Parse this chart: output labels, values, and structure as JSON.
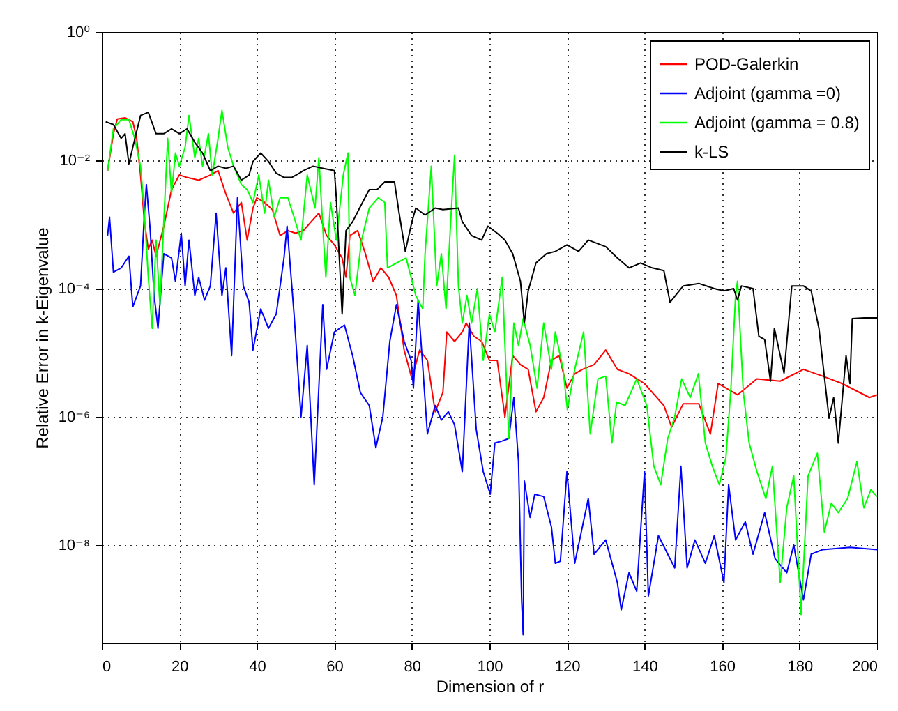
{
  "chart_data": {
    "type": "line",
    "xlabel": "Dimension of r",
    "ylabel": "Relative Error in k-Eigenvalue",
    "xlim": [
      0,
      200
    ],
    "xticks": [
      0,
      20,
      40,
      60,
      80,
      100,
      120,
      140,
      160,
      180,
      200
    ],
    "ylim": [
      3e-10,
      1
    ],
    "yticks": [
      {
        "value": 1e-08,
        "label": "10⁻⁸"
      },
      {
        "value": 1e-06,
        "label": "10⁻⁶"
      },
      {
        "value": 0.0001,
        "label": "10⁻⁴"
      },
      {
        "value": 0.01,
        "label": "10⁻²"
      },
      {
        "value": 1,
        "label": "10⁰"
      }
    ],
    "log": "y",
    "grid": true,
    "legend": "top right",
    "marker": "none",
    "line_style": "solid",
    "series": [
      {
        "name": "POD-Galerkin",
        "color": "#ff0000",
        "x": [
          1.5,
          3,
          4,
          6,
          8,
          9,
          10,
          11,
          12,
          13,
          14,
          16,
          18,
          20,
          22,
          25,
          28,
          30,
          32,
          34,
          36,
          37.5,
          39,
          40,
          42,
          44,
          46,
          48,
          50,
          52,
          54,
          56,
          58,
          60,
          62,
          63,
          64,
          66,
          68,
          70,
          72,
          74,
          76,
          77,
          78,
          80,
          82,
          84,
          86,
          88,
          89,
          91,
          93,
          94,
          96,
          98,
          100,
          102,
          104,
          106,
          108,
          110,
          112,
          114,
          116,
          118,
          120,
          122,
          124,
          127,
          130,
          133,
          136,
          140,
          142,
          145,
          147,
          150,
          154,
          157,
          159,
          164,
          169,
          175,
          181,
          186,
          191,
          198,
          200
        ],
        "values": [
          0.0069,
          0.026,
          0.044,
          0.046,
          0.04,
          0.022,
          0.0059,
          0.0011,
          0.00041,
          0.00057,
          0.00032,
          0.00094,
          0.0035,
          0.0059,
          0.0054,
          0.0049,
          0.0059,
          0.0069,
          0.003,
          0.0015,
          0.0022,
          0.00057,
          0.0018,
          0.0026,
          0.0022,
          0.0017,
          0.00067,
          0.0008,
          0.00073,
          0.0008,
          0.0011,
          0.0015,
          0.00067,
          0.00048,
          0.0003,
          0.00015,
          0.00067,
          0.0008,
          0.00035,
          0.00013,
          0.00021,
          0.00015,
          7.8e-05,
          2.9e-05,
          1.1e-05,
          3.9e-06,
          1.1e-05,
          7.6e-06,
          1.2e-06,
          2.4e-06,
          2.1e-05,
          1.5e-05,
          2.1e-05,
          2.9e-05,
          1.8e-05,
          1.5e-05,
          7.6e-06,
          7.6e-06,
          1e-06,
          9e-06,
          6.5e-06,
          5.5e-06,
          1.2e-06,
          2e-06,
          7.6e-06,
          9e-06,
          2.8e-06,
          4.7e-06,
          5.5e-06,
          6.5e-06,
          1.1e-05,
          5.5e-06,
          4.7e-06,
          3.3e-06,
          2.4e-06,
          1.5e-06,
          6.9e-07,
          1.6e-06,
          1.6e-06,
          5.4e-07,
          3.3e-06,
          2.2e-06,
          3.9e-06,
          3.6e-06,
          5.5e-06,
          4.3e-06,
          3.3e-06,
          2e-06,
          2.2e-06
        ]
      },
      {
        "name": "Adjoint (gamma =0)",
        "color": "#0000ff",
        "x": [
          1.5,
          2,
          3,
          5,
          7,
          8,
          10,
          11,
          11.5,
          12.5,
          13.5,
          14.5,
          16,
          18,
          19,
          20.5,
          21.5,
          22.5,
          24,
          25,
          26.5,
          28,
          29.5,
          31,
          32,
          33.5,
          35,
          36.5,
          38,
          39,
          41,
          43,
          45,
          47,
          47.8,
          49.6,
          51.4,
          53,
          54.8,
          57,
          58,
          60,
          62.6,
          64.7,
          66.7,
          69,
          70.7,
          72.5,
          74.3,
          76,
          78,
          79.8,
          80.4,
          81.6,
          84,
          86,
          87.6,
          89.4,
          91,
          93,
          94.8,
          96.6,
          98.4,
          100.2,
          101.4,
          103.3,
          105,
          106.3,
          107.5,
          108.3,
          108.7,
          109,
          110.5,
          111.7,
          114,
          116,
          117,
          118.3,
          120,
          122,
          123.7,
          125.5,
          127,
          130,
          133,
          134,
          136,
          138,
          140,
          141,
          143.6,
          146,
          147.8,
          149.4,
          151,
          153,
          155.7,
          158,
          160.5,
          161.7,
          163.5,
          166,
          168,
          171,
          173.7,
          176.7,
          178.5,
          181,
          183,
          186,
          193,
          200
        ],
        "values": [
          0.00067,
          0.0013,
          0.00018,
          0.00021,
          0.00032,
          5.2e-05,
          0.00011,
          0.0015,
          0.0042,
          0.0008,
          7.8e-05,
          2.4e-05,
          0.00035,
          0.0003,
          0.00013,
          0.00073,
          0.00011,
          0.00057,
          7.8e-05,
          0.00015,
          6.6e-05,
          0.00011,
          0.0015,
          7.8e-05,
          0.00021,
          9e-06,
          0.0026,
          0.00011,
          6.1e-05,
          1.1e-05,
          4.8e-05,
          2.4e-05,
          4e-05,
          0.0003,
          0.00094,
          4e-05,
          1e-06,
          1.3e-05,
          8.7e-08,
          5.6e-05,
          5.5e-06,
          2.1e-05,
          2.7e-05,
          9e-06,
          2.4e-06,
          1.5e-06,
          3.3e-07,
          1e-06,
          1.5e-05,
          5.6e-05,
          1.5e-05,
          7.6e-06,
          2.8e-06,
          6.6e-05,
          5.4e-07,
          1.5e-06,
          8.9e-07,
          1.2e-06,
          7.5e-07,
          1.4e-07,
          2.9e-05,
          6.3e-07,
          1.4e-07,
          6.2e-08,
          3.9e-07,
          4.2e-07,
          4.6e-07,
          2e-06,
          2e-07,
          1.4e-09,
          4e-10,
          1e-07,
          2.7e-08,
          6.2e-08,
          5.7e-08,
          1.9e-08,
          5.2e-09,
          5.6e-09,
          1.4e-07,
          5.2e-09,
          1.6e-08,
          5.3e-08,
          7.2e-09,
          1.2e-08,
          2.6e-09,
          9.8e-10,
          3.7e-09,
          1.9e-09,
          1.4e-07,
          1.6e-09,
          1.4e-08,
          7.2e-09,
          4.4e-09,
          1.7e-07,
          4.4e-09,
          1.2e-08,
          5.2e-09,
          1.4e-08,
          2.6e-09,
          8.7e-08,
          1.2e-08,
          2.3e-08,
          7.2e-09,
          3.2e-08,
          6.1e-09,
          3.7e-09,
          1e-08,
          1.4e-09,
          7.2e-09,
          8.5e-09,
          9.2e-09,
          8.5e-09
        ]
      },
      {
        "name": "Adjoint (gamma = 0.8)",
        "color": "#00ff00",
        "x": [
          1.5,
          3,
          5,
          7,
          8.5,
          10,
          11,
          12,
          13,
          14,
          15,
          16,
          17,
          18,
          19,
          20,
          21.5,
          22.5,
          24,
          25,
          26,
          27.5,
          28.5,
          30,
          31,
          32.5,
          34,
          36,
          37.5,
          39,
          40.5,
          42,
          43,
          44.5,
          46,
          48,
          49.6,
          51.4,
          53,
          55,
          56,
          57,
          57.8,
          59,
          60.5,
          62.3,
          63.5,
          64,
          65.3,
          67,
          69,
          71.3,
          73,
          73.7,
          76,
          78.5,
          81,
          82.8,
          83.4,
          85,
          86.4,
          87.6,
          88.8,
          90,
          91,
          92,
          93,
          94.2,
          95.4,
          96.9,
          98.4,
          100,
          101.4,
          103.3,
          104.5,
          105,
          106.3,
          107.5,
          108.7,
          110.5,
          112.3,
          114,
          116,
          117,
          119,
          120.1,
          122,
          124.3,
          126,
          128,
          130,
          131.6,
          132.8,
          135,
          138,
          140.6,
          142.4,
          144.2,
          146,
          147.8,
          149.6,
          151.8,
          153.9,
          155.7,
          157.5,
          159.3,
          161,
          162.3,
          163.5,
          164,
          165.5,
          167,
          169,
          171.3,
          173,
          175,
          176.7,
          178.5,
          180.4,
          182.2,
          184.6,
          186.4,
          188.2,
          190,
          192.4,
          194.8,
          196.6,
          198.4,
          200
        ],
        "values": [
          0.0069,
          0.031,
          0.043,
          0.043,
          0.022,
          0.0081,
          0.0015,
          0.00015,
          2.4e-05,
          0.00057,
          5.6e-05,
          0.0011,
          0.022,
          0.003,
          0.013,
          0.0081,
          0.016,
          0.05,
          0.011,
          0.022,
          0.0081,
          0.026,
          0.0059,
          0.022,
          0.06,
          0.016,
          0.0081,
          0.0042,
          0.0035,
          0.0022,
          0.0059,
          0.0015,
          0.0049,
          0.0013,
          0.0026,
          0.0026,
          0.0013,
          0.00057,
          0.0059,
          0.0018,
          0.011,
          0.00094,
          0.00015,
          0.0022,
          0.00057,
          0.0059,
          0.013,
          0.00015,
          7.8e-05,
          0.00057,
          0.0018,
          0.0026,
          0.0022,
          0.00021,
          0.00025,
          0.0003,
          7.8e-05,
          4.8e-05,
          0.00035,
          0.0081,
          0.00011,
          0.00035,
          4.8e-05,
          0.0011,
          0.012,
          0.00011,
          2.9e-05,
          7.8e-05,
          2.9e-05,
          0.0001,
          7.6e-06,
          4e-05,
          2.1e-05,
          0.00015,
          2.4e-06,
          4.6e-07,
          2.9e-05,
          1.3e-05,
          3.4e-05,
          1.3e-05,
          2.8e-06,
          2.9e-05,
          5.5e-06,
          2.1e-05,
          5.5e-06,
          1.3e-06,
          5.5e-06,
          2.1e-05,
          5.4e-07,
          3.9e-06,
          4.3e-06,
          3.9e-07,
          1.7e-06,
          1.5e-06,
          3.9e-06,
          1.5e-06,
          1.7e-07,
          8.7e-08,
          4.6e-07,
          1e-06,
          3.9e-06,
          2e-06,
          4.7e-06,
          3.9e-07,
          1.7e-07,
          8.7e-08,
          2.3e-07,
          2.8e-06,
          7.8e-05,
          0.00013,
          2.4e-06,
          3.9e-07,
          1.4e-07,
          5.3e-08,
          1.7e-07,
          2.6e-09,
          3.8e-08,
          1.2e-07,
          8.3e-10,
          1.2e-07,
          2.7e-07,
          1.6e-08,
          4.5e-08,
          3.2e-08,
          5.3e-08,
          2e-07,
          3.8e-08,
          7.3e-08,
          5.7e-08
        ]
      },
      {
        "name": "k-LS",
        "color": "#000000",
        "x": [
          1,
          3,
          5,
          6,
          7,
          8,
          10,
          12,
          14,
          16,
          18,
          20,
          22,
          24,
          26,
          28,
          30,
          32,
          34,
          36,
          38,
          39,
          41,
          43,
          45,
          47,
          49,
          51,
          52,
          54.5,
          57,
          60,
          60.5,
          61.4,
          62,
          63,
          64.7,
          66.5,
          69,
          71,
          73,
          75.5,
          76.7,
          78.3,
          80,
          81,
          83.4,
          86,
          88,
          92,
          93,
          95.4,
          98,
          99.6,
          102,
          104,
          106,
          108,
          109,
          110,
          112,
          114.7,
          117,
          120,
          123,
          125.5,
          130,
          133,
          136,
          139,
          142,
          145,
          146.6,
          148,
          150,
          154,
          158,
          160.5,
          163,
          164,
          165,
          168,
          169.5,
          171,
          172.5,
          173.5,
          176,
          178,
          181,
          183,
          185,
          187.6,
          188.8,
          190,
          192,
          193,
          193.6,
          196.6,
          200
        ],
        "values": [
          0.04,
          0.036,
          0.022,
          0.026,
          0.0088,
          0.016,
          0.05,
          0.056,
          0.026,
          0.026,
          0.031,
          0.026,
          0.031,
          0.019,
          0.013,
          0.0069,
          0.0081,
          0.0075,
          0.0081,
          0.0049,
          0.0059,
          0.0096,
          0.013,
          0.0096,
          0.0063,
          0.0054,
          0.0054,
          0.0063,
          0.0069,
          0.0081,
          0.0075,
          0.0069,
          0.0026,
          0.00021,
          4e-05,
          0.0008,
          0.0011,
          0.0018,
          0.0035,
          0.0035,
          0.0046,
          0.0046,
          0.0015,
          0.00038,
          0.0011,
          0.0018,
          0.0014,
          0.0018,
          0.0017,
          0.0018,
          0.0011,
          0.00067,
          0.00057,
          0.00094,
          0.00073,
          0.00057,
          0.00035,
          0.00013,
          2.9e-05,
          9.2e-05,
          0.00025,
          0.00035,
          0.00038,
          0.00048,
          0.00038,
          0.00057,
          0.00045,
          0.0003,
          0.00021,
          0.00025,
          0.00021,
          0.00019,
          6.1e-05,
          7.8e-05,
          0.00011,
          0.00012,
          0.0001,
          9.2e-05,
          0.0001,
          6.6e-05,
          0.00011,
          0.0001,
          1.8e-05,
          1.6e-05,
          3.6e-06,
          2.4e-05,
          4.8e-06,
          0.00011,
          0.00011,
          9.2e-05,
          2.4e-05,
          9.5e-07,
          2e-06,
          3.9e-07,
          9e-06,
          3.3e-06,
          3.4e-05,
          3.5e-05,
          3.5e-05
        ]
      }
    ]
  }
}
